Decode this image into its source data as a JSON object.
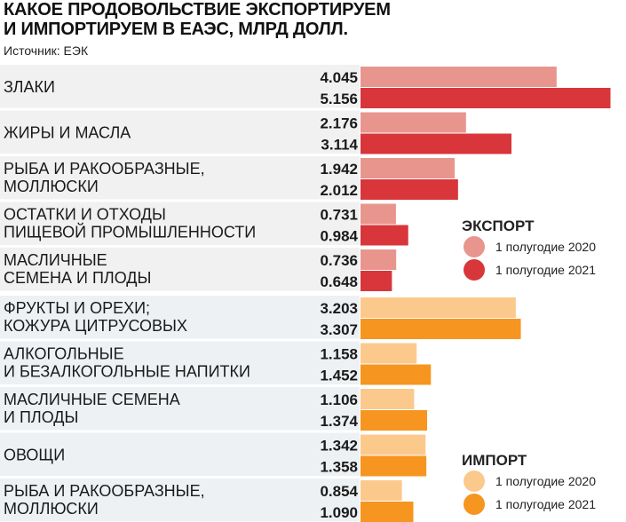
{
  "header": {
    "title_line1": "КАКОЕ ПРОДОВОЛЬСТВИЕ ЭКСПОРТИРУЕМ",
    "title_line2": "И ИМПОРТИРУЕМ В ЕАЭС, МЛРД ДОЛЛ.",
    "source": "Источник: ЕЭК"
  },
  "chart_data": [
    {
      "type": "bar",
      "orientation": "horizontal",
      "group": "ЭКСПОРТ",
      "categories": [
        [
          "ЗЛАКИ"
        ],
        [
          "ЖИРЫ И МАСЛА"
        ],
        [
          "РЫБА И РАКООБРАЗНЫЕ,",
          "МОЛЛЮСКИ"
        ],
        [
          "ОСТАТКИ И ОТХОДЫ",
          "ПИЩЕВОЙ ПРОМЫШЛЕННОСТИ"
        ],
        [
          "МАСЛИЧНЫЕ",
          "СЕМЕНА И ПЛОДЫ"
        ]
      ],
      "series": [
        {
          "name": "1 полугодие 2020",
          "values": [
            4.045,
            2.176,
            1.942,
            0.731,
            0.736
          ],
          "labels": [
            "4.045",
            "2.176",
            "1.942",
            "0.731",
            "0.736"
          ],
          "color": "#e8958d"
        },
        {
          "name": "1 полугодие 2021",
          "values": [
            5.156,
            3.114,
            2.012,
            0.984,
            0.648
          ],
          "labels": [
            "5.156",
            "3.114",
            "2.012",
            "0.984",
            "0.648"
          ],
          "color": "#d8363a"
        }
      ],
      "legend": {
        "title": "ЭКСПОРТ",
        "placement": "right"
      },
      "xlim": [
        0,
        5.5
      ]
    },
    {
      "type": "bar",
      "orientation": "horizontal",
      "group": "ИМПОРТ",
      "categories": [
        [
          "ФРУКТЫ И ОРЕХИ;",
          "КОЖУРА ЦИТРУСОВЫХ"
        ],
        [
          "АЛКОГОЛЬНЫЕ",
          "И БЕЗАЛКОГОЛЬНЫЕ НАПИТКИ"
        ],
        [
          "МАСЛИЧНЫЕ СЕМЕНА",
          "И ПЛОДЫ"
        ],
        [
          "ОВОЩИ"
        ],
        [
          "РЫБА И РАКООБРАЗНЫЕ,",
          "МОЛЛЮСКИ"
        ]
      ],
      "series": [
        {
          "name": "1 полугодие 2020",
          "values": [
            3.203,
            1.158,
            1.106,
            1.342,
            0.854
          ],
          "labels": [
            "3.203",
            "1.158",
            "1.106",
            "1.342",
            "0.854"
          ],
          "color": "#fcc98d"
        },
        {
          "name": "1 полугодие 2021",
          "values": [
            3.307,
            1.452,
            1.374,
            1.358,
            1.09
          ],
          "labels": [
            "3.307",
            "1.452",
            "1.374",
            "1.358",
            "1.090"
          ],
          "color": "#f6951f"
        }
      ],
      "legend": {
        "title": "ИМПОРТ",
        "placement": "bottom-right"
      },
      "xlim": [
        0,
        5.5
      ]
    }
  ],
  "colors": {
    "panel_export": "#f1f1f1",
    "panel_import": "#eef1f4",
    "separator": "#ffffff"
  }
}
